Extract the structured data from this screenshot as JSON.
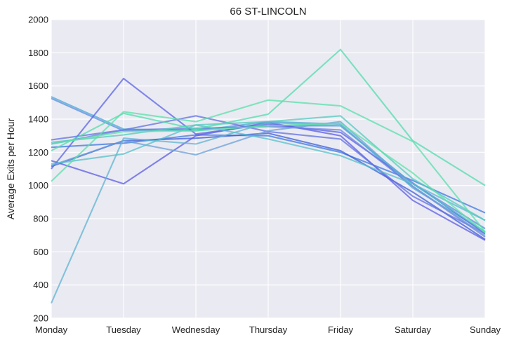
{
  "chart_data": {
    "type": "line",
    "title": "66 ST-LINCOLN",
    "xlabel": "",
    "ylabel": "Average Exits per Hour",
    "categories": [
      "Monday",
      "Tuesday",
      "Wednesday",
      "Thursday",
      "Friday",
      "Saturday",
      "Sunday"
    ],
    "ylim": [
      200,
      2000
    ],
    "yticks": [
      200,
      400,
      600,
      800,
      1000,
      1200,
      1400,
      1600,
      1800,
      2000
    ],
    "grid": true,
    "background": "#eaeaf2",
    "grid_color": "#ffffff",
    "series": [
      {
        "values": [
          1535,
          1340,
          1330,
          1385,
          1370,
          985,
          720
        ],
        "color": "#4ba8d6"
      },
      {
        "values": [
          1525,
          1330,
          1340,
          1360,
          1360,
          1010,
          740
        ],
        "color": "#5a8ce0"
      },
      {
        "values": [
          1230,
          1255,
          1305,
          1300,
          1200,
          1030,
          835
        ],
        "color": "#3d78e0"
      },
      {
        "values": [
          1115,
          1270,
          1285,
          1315,
          1210,
          960,
          675
        ],
        "color": "#3c5ed8"
      },
      {
        "values": [
          1100,
          1645,
          1310,
          1370,
          1320,
          1015,
          710
        ],
        "color": "#5a63e6"
      },
      {
        "values": [
          1150,
          1010,
          1300,
          1380,
          1300,
          910,
          670
        ],
        "color": "#5b5ce5"
      },
      {
        "values": [
          1275,
          1335,
          1420,
          1325,
          1280,
          935,
          710
        ],
        "color": "#6270e0"
      },
      {
        "values": [
          1250,
          1335,
          1345,
          1355,
          1335,
          995,
          690
        ],
        "color": "#6d82e2"
      },
      {
        "values": [
          1120,
          1270,
          1185,
          1330,
          1385,
          995,
          700
        ],
        "color": "#6aa0da"
      },
      {
        "values": [
          290,
          1285,
          1250,
          1380,
          1360,
          1010,
          790
        ],
        "color": "#5fb3d1"
      },
      {
        "values": [
          1130,
          1190,
          1365,
          1280,
          1180,
          1010,
          720
        ],
        "color": "#55c0c8"
      },
      {
        "values": [
          1260,
          1305,
          1365,
          1385,
          1420,
          1040,
          790
        ],
        "color": "#52c9bf"
      },
      {
        "values": [
          1210,
          1435,
          1340,
          1430,
          1820,
          1270,
          1000
        ],
        "color": "#52dcae"
      },
      {
        "values": [
          1025,
          1445,
          1385,
          1515,
          1480,
          1265,
          720
        ],
        "color": "#58e0aa"
      },
      {
        "values": [
          1250,
          1325,
          1330,
          1360,
          1375,
          1075,
          715
        ],
        "color": "#5ce4a6"
      }
    ]
  }
}
